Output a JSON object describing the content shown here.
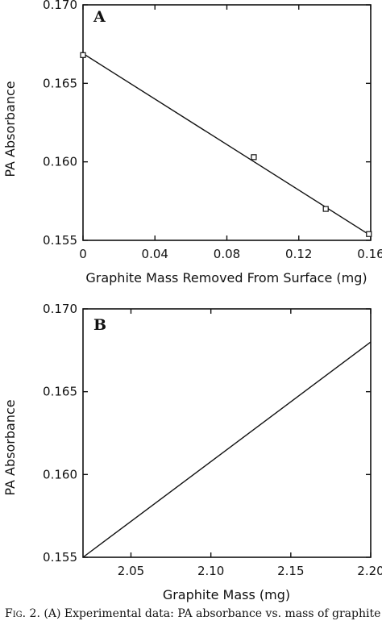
{
  "chart_data": [
    {
      "panel": "A",
      "type": "scatter",
      "xlabel": "Graphite Mass Removed From Surface (mg)",
      "ylabel": "PA Absorbance",
      "xlim": [
        0,
        0.16
      ],
      "ylim": [
        0.155,
        0.17
      ],
      "xticks": [
        "0",
        "0.04",
        "0.08",
        "0.12",
        "0.16"
      ],
      "yticks": [
        "0.155",
        "0.160",
        "0.165",
        "0.170"
      ],
      "points": [
        {
          "x": 0.0,
          "y": 0.1668
        },
        {
          "x": 0.095,
          "y": 0.1603
        },
        {
          "x": 0.135,
          "y": 0.157
        },
        {
          "x": 0.159,
          "y": 0.1554
        }
      ],
      "fit_line": [
        {
          "x": 0.0,
          "y": 0.1669
        },
        {
          "x": 0.16,
          "y": 0.1553
        }
      ],
      "grid": false
    },
    {
      "panel": "B",
      "type": "line",
      "xlabel": "Graphite Mass (mg)",
      "ylabel": "PA Absorbance",
      "xlim": [
        2.02,
        2.2
      ],
      "ylim": [
        0.155,
        0.17
      ],
      "xticks": [
        "2.05",
        "2.10",
        "2.15",
        "2.20"
      ],
      "yticks": [
        "0.155",
        "0.160",
        "0.165",
        "0.170"
      ],
      "series": [
        {
          "points": [
            {
              "x": 2.02,
              "y": 0.155
            },
            {
              "x": 2.2,
              "y": 0.168
            }
          ]
        }
      ],
      "grid": false
    }
  ],
  "caption": {
    "fig_label": "Fig. 2.",
    "text": "(A) Experimental data: PA absorbance vs. mass of graphite"
  }
}
